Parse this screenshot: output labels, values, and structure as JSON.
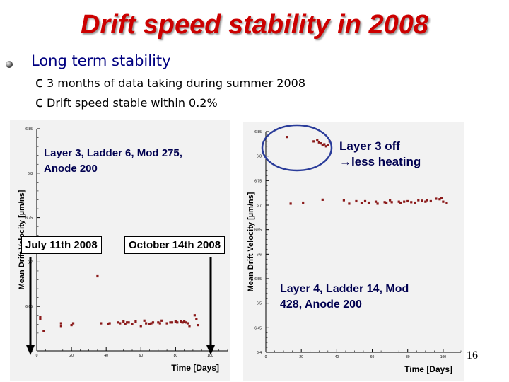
{
  "title": "Drift speed stability in 2008",
  "bullet": "Long term stability",
  "sub_bullets": [
    "3 months of data taking during summer 2008",
    "Drift speed stable within 0.2%"
  ],
  "sub_bullet_icon": "c",
  "tags": {
    "start": "July 11th 2008",
    "end": "October 14th 2008"
  },
  "ann_left": [
    "Layer 3, Ladder 6, Mod 275,",
    "Anode 200"
  ],
  "ann_right_top": [
    "Layer 3 off",
    "less heating"
  ],
  "ann_right_top_arrow": "→",
  "ann_right_bottom": [
    "Layer 4, Ladder 14, Mod",
    "428, Anode 200"
  ],
  "page_number": "16",
  "colors": {
    "title": "#cc0000",
    "points": "#8b1a1a",
    "annotation": "#1f3a8a",
    "ellipse": "#2a3c9a",
    "arrow": "#000000"
  },
  "chart_data": [
    {
      "type": "scatter",
      "title": "",
      "xlabel": "Time [Days]",
      "ylabel": "Mean Drift Velocity [µm/ns]",
      "xlim": [
        0,
        110
      ],
      "ylim": [
        6.6,
        6.85
      ],
      "xticks": [
        0,
        20,
        40,
        60,
        80,
        100
      ],
      "yticks": [
        6.6,
        6.65,
        6.7,
        6.75,
        6.8,
        6.85
      ],
      "ytick_labels": [
        "6.6",
        "6.65",
        "6.7",
        "6.75",
        "6.8",
        "6.85"
      ],
      "x": [
        2,
        2,
        4,
        14,
        14,
        20,
        21,
        35,
        37,
        41,
        42,
        47,
        48,
        50,
        51,
        52,
        53,
        55,
        57,
        60,
        62,
        63,
        65,
        66,
        67,
        70,
        71,
        72,
        75,
        77,
        78,
        80,
        81,
        83,
        84,
        85,
        86,
        87,
        88,
        91,
        92,
        93
      ],
      "y": [
        6.638,
        6.636,
        6.622,
        6.628,
        6.631,
        6.629,
        6.631,
        6.684,
        6.631,
        6.63,
        6.631,
        6.632,
        6.631,
        6.633,
        6.63,
        6.632,
        6.632,
        6.63,
        6.633,
        6.628,
        6.634,
        6.631,
        6.63,
        6.631,
        6.632,
        6.632,
        6.631,
        6.634,
        6.631,
        6.632,
        6.632,
        6.633,
        6.632,
        6.633,
        6.632,
        6.633,
        6.632,
        6.631,
        6.628,
        6.64,
        6.636,
        6.629
      ]
    },
    {
      "type": "scatter",
      "title": "",
      "xlabel": "Time [Days]",
      "ylabel": "Mean Drift Velocity [µm/ns]",
      "xlim": [
        0,
        110
      ],
      "ylim": [
        6.4,
        6.85
      ],
      "xticks": [
        0,
        20,
        40,
        60,
        80,
        100
      ],
      "yticks": [
        6.4,
        6.45,
        6.5,
        6.55,
        6.6,
        6.65,
        6.7,
        6.75,
        6.8,
        6.85
      ],
      "ytick_labels": [
        "6.4",
        "6.45",
        "6.5",
        "6.55",
        "6.6",
        "6.65",
        "6.7",
        "6.75",
        "6.8",
        "6.85"
      ],
      "x": [
        12,
        27,
        29,
        30,
        31,
        32,
        33,
        34,
        35,
        36,
        14,
        21,
        32,
        44,
        47,
        51,
        54,
        56,
        58,
        62,
        63,
        67,
        68,
        70,
        71,
        75,
        76,
        78,
        80,
        82,
        84,
        86,
        88,
        90,
        91,
        93,
        96,
        98,
        99,
        100,
        102
      ],
      "y": [
        6.839,
        6.83,
        6.832,
        6.828,
        6.826,
        6.822,
        6.824,
        6.82,
        6.823,
        6.83,
        6.703,
        6.705,
        6.711,
        6.71,
        6.703,
        6.708,
        6.704,
        6.708,
        6.705,
        6.707,
        6.703,
        6.706,
        6.705,
        6.71,
        6.706,
        6.707,
        6.705,
        6.707,
        6.708,
        6.706,
        6.705,
        6.71,
        6.709,
        6.707,
        6.71,
        6.708,
        6.713,
        6.712,
        6.714,
        6.707,
        6.704
      ]
    }
  ]
}
